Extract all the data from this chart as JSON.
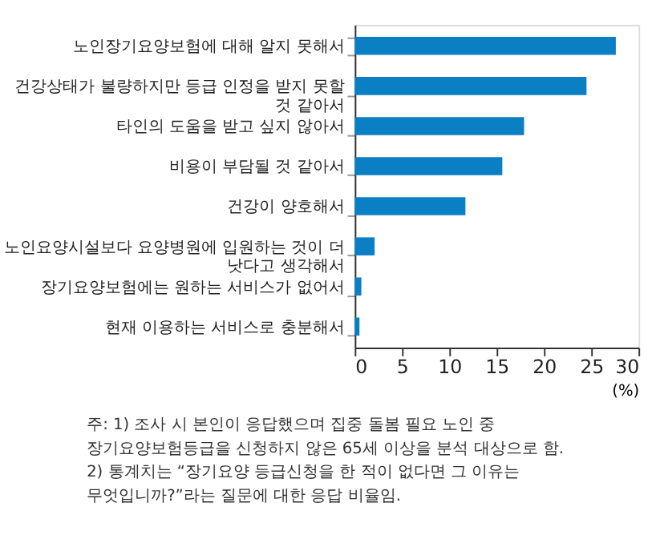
{
  "chart_data": {
    "type": "bar",
    "orientation": "horizontal",
    "xlabel": "(%)",
    "categories": [
      "노인장기요양보험에 대해 알지 못해서",
      "건강상태가 불량하지만 등급 인정을 받지 못할 것 같아서",
      "타인의 도움을 받고 싶지 않아서",
      "비용이 부담될 것 같아서",
      "건강이 양호해서",
      "노인요양시설보다 요양병원에 입원하는 것이 더 낫다고 생각해서",
      "장기요양보험에는 원하는 서비스가 없어서",
      "현재 이용하는 서비스로 충분해서"
    ],
    "values": [
      27.6,
      24.5,
      17.9,
      15.6,
      11.7,
      2.1,
      0.7,
      0.5
    ],
    "color": "#0a7fc4",
    "xlim": [
      0,
      30
    ],
    "xticks": [
      0,
      5,
      10,
      15,
      20,
      25,
      30
    ],
    "grid": false,
    "annotations": [
      "주: 1) 조사 시 본인이 응답했으며 집중 돌봄 필요 노인 중 장기요양보험등급을 신청하지 않은 65세 이상을 분석 대상으로 함.",
      "2) 통계치는 “장기요양 등급신청을 한 적이 없다면 그 이유는 무엇입니까?”라는 질문에 대한 응답 비율임."
    ]
  }
}
